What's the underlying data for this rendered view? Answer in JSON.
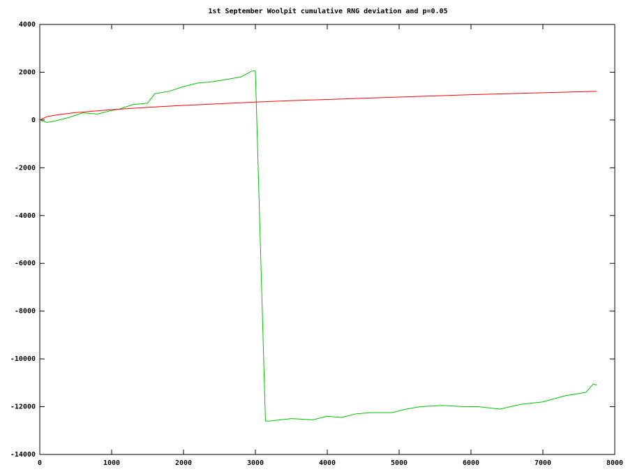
{
  "chart_data": {
    "type": "line",
    "title": "1st September Woolpit cumulative RNG deviation and p=0.05",
    "xlim": [
      0,
      8000
    ],
    "xticks": [
      0,
      1000,
      2000,
      3000,
      4000,
      5000,
      6000,
      7000,
      8000
    ],
    "ylim": [
      -14000,
      4000
    ],
    "yticks": [
      -14000,
      -12000,
      -10000,
      -8000,
      -6000,
      -4000,
      -2000,
      0,
      2000,
      4000
    ],
    "grid": false,
    "series": [
      {
        "color": "#00c000",
        "x": [
          0,
          100,
          200,
          400,
          600,
          800,
          1000,
          1100,
          1300,
          1500,
          1600,
          1800,
          2000,
          2200,
          2400,
          2600,
          2800,
          2950,
          3000,
          3140,
          3200,
          3500,
          3800,
          4000,
          4200,
          4400,
          4600,
          4900,
          5100,
          5300,
          5600,
          5900,
          6100,
          6400,
          6700,
          7000,
          7300,
          7600,
          7700,
          7750
        ],
        "values": [
          0,
          -100,
          -50,
          100,
          300,
          250,
          400,
          450,
          650,
          700,
          1100,
          1200,
          1400,
          1550,
          1600,
          1700,
          1800,
          2050,
          2050,
          -12600,
          -12600,
          -12500,
          -12550,
          -12400,
          -12450,
          -12300,
          -12250,
          -12250,
          -12100,
          -12000,
          -11950,
          -12000,
          -12000,
          -12100,
          -11900,
          -11800,
          -11550,
          -11400,
          -11050,
          -11100
        ]
      },
      {
        "color": "#ff0000",
        "x": [
          0,
          100,
          250,
          500,
          1000,
          1500,
          2000,
          2500,
          3000,
          3500,
          4000,
          4500,
          5000,
          5500,
          6000,
          6500,
          7000,
          7500,
          7750
        ],
        "values": [
          0,
          140,
          220,
          310,
          430,
          530,
          610,
          680,
          750,
          810,
          860,
          910,
          960,
          1010,
          1060,
          1100,
          1140,
          1180,
          1200
        ]
      }
    ]
  }
}
